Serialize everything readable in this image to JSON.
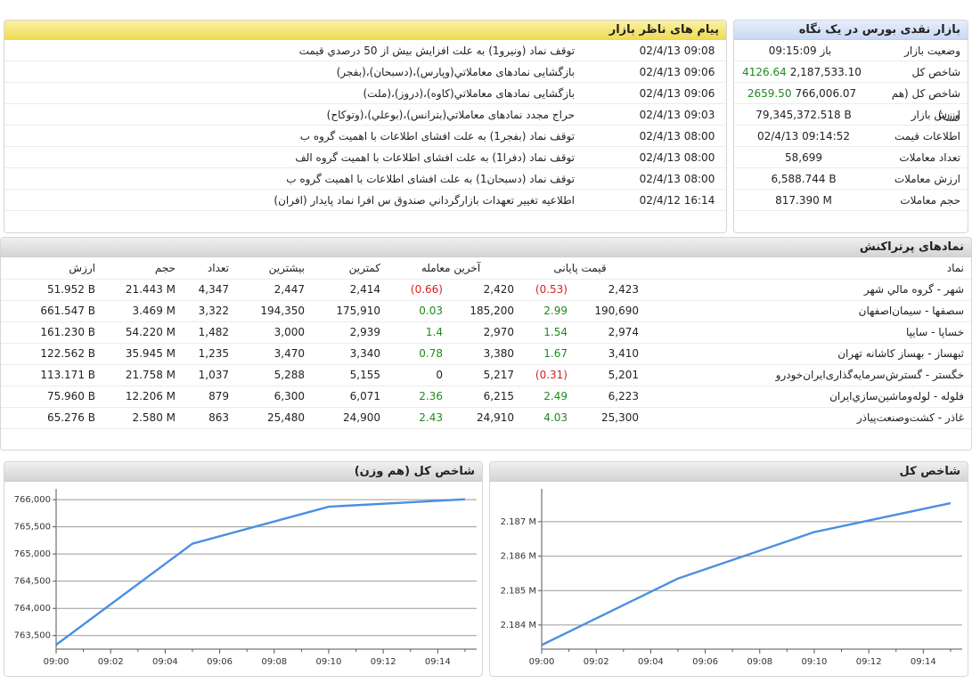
{
  "glance": {
    "title": "بازار نقدی بورس در یک نگاه",
    "rows": [
      {
        "label": "وضعیت بازار",
        "value": "باز 09:15:09",
        "extra": ""
      },
      {
        "label": "شاخص کل",
        "value": "2,187,533.10",
        "extra": "4126.64"
      },
      {
        "label": "شاخص کل (هم وزن)",
        "value": "766,006.07",
        "extra": "2659.50"
      },
      {
        "label": "ارزش بازار",
        "value": "79,345,372.518 B",
        "extra": ""
      },
      {
        "label": "اطلاعات قیمت",
        "value": "02/4/13 09:14:52",
        "extra": ""
      },
      {
        "label": "تعداد معاملات",
        "value": "58,699",
        "extra": ""
      },
      {
        "label": "ارزش معاملات",
        "value": "6,588.744 B",
        "extra": ""
      },
      {
        "label": "حجم معاملات",
        "value": "817.390 M",
        "extra": ""
      }
    ]
  },
  "messages": {
    "title": "پیام های ناظر بازار",
    "rows": [
      {
        "time": "02/4/13 09:08",
        "text": "توقف نماد (ونیرو1) به علت افزایش بیش از 50 درصدي قیمت"
      },
      {
        "time": "02/4/13 09:06",
        "text": "بازگشایی نمادهای معاملاتي(وپارس)،(دسبحان)،(بفجر)"
      },
      {
        "time": "02/4/13 09:06",
        "text": "بازگشایی نمادهای معاملاتي(کاوه)،(دروز)،(ملت)"
      },
      {
        "time": "02/4/13 09:03",
        "text": "حراج مجدد نمادهای معاملاتي(بترانس)،(بوعلي)،(وتوکاح)"
      },
      {
        "time": "02/4/13 08:00",
        "text": "توقف نماد (بفجر1) به علت افشای اطلاعات با اهمیت گروه ب"
      },
      {
        "time": "02/4/13 08:00",
        "text": "توقف نماد (دفرا1) به علت افشای اطلاعات با اهمیت گروه الف"
      },
      {
        "time": "02/4/13 08:00",
        "text": "توقف نماد (دسبحان1) به علت افشای اطلاعات با اهمیت گروه ب"
      },
      {
        "time": "02/4/12 16:14",
        "text": "اطلاعیه تغییر تعهدات بازارگرداني صندوق س افرا نماد پایدار (افران)"
      }
    ]
  },
  "top_symbols": {
    "title": "نمادهای پرتراکنش",
    "headers": {
      "value": "ارزش",
      "volume": "حجم",
      "count": "تعداد",
      "max": "بیشترین",
      "min": "کمترین",
      "last": "آخرین معامله",
      "close": "قیمت پایانی",
      "name": "نماد"
    },
    "rows": [
      {
        "value": "51.952 B",
        "volume": "21.443 M",
        "count": "4,347",
        "max": "2,447",
        "min": "2,414",
        "last_chg": "(0.66)",
        "last": "2,420",
        "close_chg": "(0.53)",
        "close": "2,423",
        "name": "شهر - گروه مالي شهر"
      },
      {
        "value": "661.547 B",
        "volume": "3.469 M",
        "count": "3,322",
        "max": "194,350",
        "min": "175,910",
        "last_chg": "0.03",
        "last": "185,200",
        "close_chg": "2.99",
        "close": "190,690",
        "name": "سصفها - سیمان‌اصفهان"
      },
      {
        "value": "161.230 B",
        "volume": "54.220 M",
        "count": "1,482",
        "max": "3,000",
        "min": "2,939",
        "last_chg": "1.4",
        "last": "2,970",
        "close_chg": "1.54",
        "close": "2,974",
        "name": "خساپا - سایپا"
      },
      {
        "value": "122.562 B",
        "volume": "35.945 M",
        "count": "1,235",
        "max": "3,470",
        "min": "3,340",
        "last_chg": "0.78",
        "last": "3,380",
        "close_chg": "1.67",
        "close": "3,410",
        "name": "ثبهساز - بهساز کاشانه تهران"
      },
      {
        "value": "113.171 B",
        "volume": "21.758 M",
        "count": "1,037",
        "max": "5,288",
        "min": "5,155",
        "last_chg": "0",
        "last": "5,217",
        "close_chg": "(0.31)",
        "close": "5,201",
        "name": "خگستر - گسترش‌سرمایه‌گذاری‌ایران‌خودرو"
      },
      {
        "value": "75.960 B",
        "volume": "12.206 M",
        "count": "879",
        "max": "6,300",
        "min": "6,071",
        "last_chg": "2.36",
        "last": "6,215",
        "close_chg": "2.49",
        "close": "6,223",
        "name": "فلوله - لوله‌وماشین‌سازي‌ایران"
      },
      {
        "value": "65.276 B",
        "volume": "2.580 M",
        "count": "863",
        "max": "25,480",
        "min": "24,900",
        "last_chg": "2.43",
        "last": "24,910",
        "close_chg": "4.03",
        "close": "25,300",
        "name": "غاذر - کشت‌وصنعت‌پیاذر"
      }
    ]
  },
  "colors": {
    "positive": "#1f8a1f",
    "negative": "#d42020",
    "line": "#4a90e2"
  },
  "chart_data": [
    {
      "type": "line",
      "title": "شاخص کل (هم وزن)",
      "x": [
        "09:00",
        "09:05",
        "09:10",
        "09:15"
      ],
      "series": [
        {
          "values": [
            763330,
            765190,
            765870,
            766006
          ]
        }
      ],
      "x_ticks": [
        "09:00",
        "09:02",
        "09:04",
        "09:06",
        "09:08",
        "09:10",
        "09:12",
        "09:14"
      ],
      "y_ticks": [
        "763,500",
        "764,000",
        "764,500",
        "765,000",
        "765,500",
        "766,000"
      ],
      "ylim": [
        763250,
        766100
      ],
      "grid": true
    },
    {
      "type": "line",
      "title": "شاخص کل",
      "x": [
        "09:00",
        "09:05",
        "09:10",
        "09:15"
      ],
      "series": [
        {
          "values": [
            2183420,
            2185350,
            2186700,
            2187540
          ]
        }
      ],
      "x_ticks": [
        "09:00",
        "09:02",
        "09:04",
        "09:06",
        "09:08",
        "09:10",
        "09:12",
        "09:14"
      ],
      "y_ticks": [
        "2.184 M",
        "2.185 M",
        "2.186 M",
        "2.187 M"
      ],
      "ylim": [
        2183300,
        2187800
      ],
      "grid": true
    }
  ]
}
